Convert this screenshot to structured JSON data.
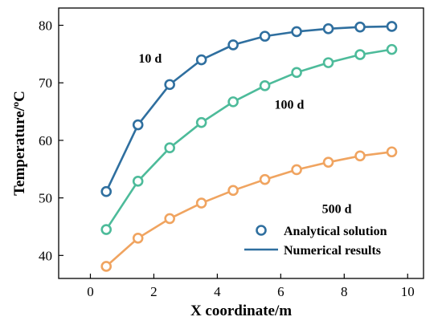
{
  "chart_data": {
    "type": "line",
    "xlabel": "X coordinate/m",
    "ylabel": "Temperature/ºC",
    "xlim": [
      -1,
      10.5
    ],
    "ylim": [
      36,
      83
    ],
    "xticks": [
      0,
      2,
      4,
      6,
      8,
      10
    ],
    "yticks": [
      40,
      50,
      60,
      70,
      80
    ],
    "grid": false,
    "legend_position": "bottom-right",
    "legend": [
      {
        "label": "Analytical solution",
        "marker": "circle"
      },
      {
        "label": "Numerical results",
        "marker": "line"
      }
    ],
    "x": [
      0.5,
      1.5,
      2.5,
      3.5,
      4.5,
      5.5,
      6.5,
      7.5,
      8.5,
      9.5
    ],
    "series": [
      {
        "name": "10 d",
        "color": "#2f6f9f",
        "values": [
          51.1,
          62.7,
          69.7,
          74.0,
          76.6,
          78.1,
          78.9,
          79.4,
          79.7,
          79.8
        ]
      },
      {
        "name": "100 d",
        "color": "#4dbb9a",
        "values": [
          44.5,
          52.9,
          58.7,
          63.1,
          66.7,
          69.5,
          71.8,
          73.5,
          74.9,
          75.8
        ]
      },
      {
        "name": "500 d",
        "color": "#f0a460",
        "values": [
          38.1,
          43.0,
          46.4,
          49.1,
          51.3,
          53.2,
          54.9,
          56.2,
          57.3,
          58.0
        ]
      }
    ]
  }
}
